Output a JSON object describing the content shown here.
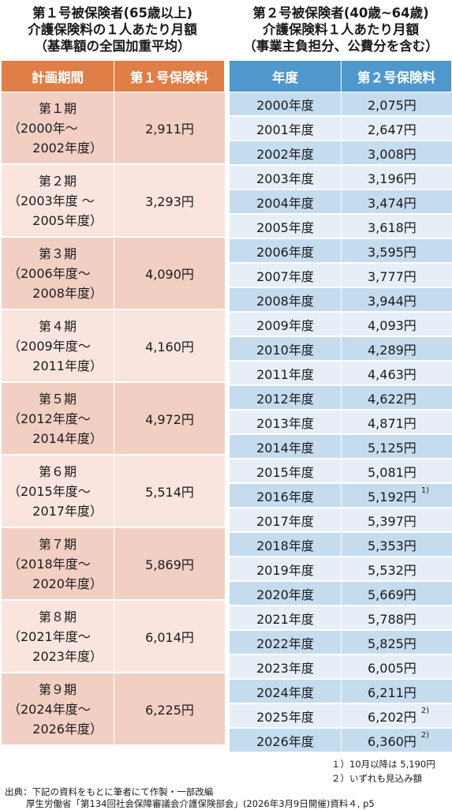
{
  "left": {
    "title": [
      "第１号被保険者(65歳以上)",
      "介護保険料の１人あたり月額",
      "（基準額の全国加重平均）"
    ],
    "headers": [
      "計画期間",
      "第１号保険料"
    ],
    "rows": [
      {
        "name": "第１期",
        "from": "（2000年～",
        "to": "2002年度）",
        "fee": "2,911円"
      },
      {
        "name": "第２期",
        "from": "（2003年度 ～",
        "to": "2005年度）",
        "fee": "3,293円"
      },
      {
        "name": "第３期",
        "from": "（2006年度～",
        "to": "2008年度）",
        "fee": "4,090円"
      },
      {
        "name": "第４期",
        "from": "（2009年度～",
        "to": "2011年度）",
        "fee": "4,160円"
      },
      {
        "name": "第５期",
        "from": "（2012年度～",
        "to": "2014年度）",
        "fee": "4,972円"
      },
      {
        "name": "第６期",
        "from": "（2015年度～",
        "to": "2017年度）",
        "fee": "5,514円"
      },
      {
        "name": "第７期",
        "from": "（2018年度～",
        "to": "2020年度）",
        "fee": "5,869円"
      },
      {
        "name": "第８期",
        "from": "（2021年度～",
        "to": "2023年度）",
        "fee": "6,014円"
      },
      {
        "name": "第９期",
        "from": "（2024年度～",
        "to": "2026年度）",
        "fee": "6,225円"
      }
    ]
  },
  "right": {
    "title": [
      "第２号被保険者(40歳~64歳)",
      "介護保険料１人あたり月額",
      "（事業主負担分、公費分を含む）"
    ],
    "headers": [
      "年度",
      "第２号保険料"
    ],
    "rows": [
      {
        "year": "2000年度",
        "fee": "2,075円",
        "note": ""
      },
      {
        "year": "2001年度",
        "fee": "2,647円",
        "note": ""
      },
      {
        "year": "2002年度",
        "fee": "3,008円",
        "note": ""
      },
      {
        "year": "2003年度",
        "fee": "3,196円",
        "note": ""
      },
      {
        "year": "2004年度",
        "fee": "3,474円",
        "note": ""
      },
      {
        "year": "2005年度",
        "fee": "3,618円",
        "note": ""
      },
      {
        "year": "2006年度",
        "fee": "3,595円",
        "note": ""
      },
      {
        "year": "2007年度",
        "fee": "3,777円",
        "note": ""
      },
      {
        "year": "2008年度",
        "fee": "3,944円",
        "note": ""
      },
      {
        "year": "2009年度",
        "fee": "4,093円",
        "note": ""
      },
      {
        "year": "2010年度",
        "fee": "4,289円",
        "note": ""
      },
      {
        "year": "2011年度",
        "fee": "4,463円",
        "note": ""
      },
      {
        "year": "2012年度",
        "fee": "4,622円",
        "note": ""
      },
      {
        "year": "2013年度",
        "fee": "4,871円",
        "note": ""
      },
      {
        "year": "2014年度",
        "fee": "5,125円",
        "note": ""
      },
      {
        "year": "2015年度",
        "fee": "5,081円",
        "note": ""
      },
      {
        "year": "2016年度",
        "fee": "5,192円",
        "note": "1)"
      },
      {
        "year": "2017年度",
        "fee": "5,397円",
        "note": ""
      },
      {
        "year": "2018年度",
        "fee": "5,353円",
        "note": ""
      },
      {
        "year": "2019年度",
        "fee": "5,532円",
        "note": ""
      },
      {
        "year": "2020年度",
        "fee": "5,669円",
        "note": ""
      },
      {
        "year": "2021年度",
        "fee": "5,788円",
        "note": ""
      },
      {
        "year": "2022年度",
        "fee": "5,825円",
        "note": ""
      },
      {
        "year": "2023年度",
        "fee": "6,005円",
        "note": ""
      },
      {
        "year": "2024年度",
        "fee": "6,211円",
        "note": ""
      },
      {
        "year": "2025年度",
        "fee": "6,202円",
        "note": "2)"
      },
      {
        "year": "2026年度",
        "fee": "6,360円",
        "note": "2)"
      }
    ]
  },
  "footnotes": [
    "１）10月以降は 5,190円",
    "２）いずれも見込み額"
  ],
  "source": [
    "出典：下記の資料をもとに筆者にて作製・一部改編",
    "厚生労働省「第134回社会保障審議会介護保険部会」(2026年3月9日開催)資料４, p5"
  ],
  "colors": {
    "orange_header": "#e07e47",
    "blue_header": "#4e98cd",
    "orange_row": "#f2cfc3",
    "orange_row_alt": "#f9e5de",
    "blue_row": "#c5dcef",
    "blue_row_alt": "#e6eff8"
  }
}
